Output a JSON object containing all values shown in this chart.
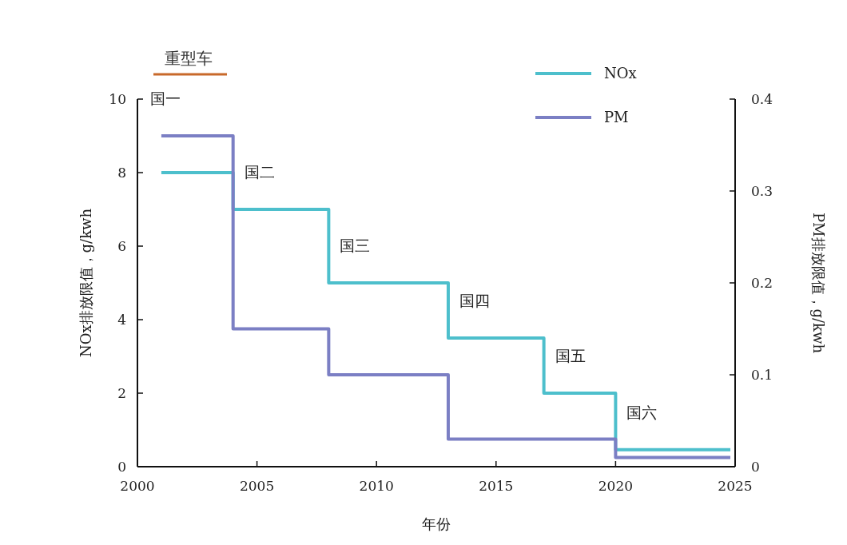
{
  "chart_data": {
    "type": "step",
    "title": "重型车",
    "xlabel": "年份",
    "ylabel": "NOx排放限值，g/kwh",
    "y2label": "PM排放限值，g/kwh",
    "x": [
      2001,
      2004,
      2008,
      2013,
      2017,
      2020,
      2024.8
    ],
    "series": [
      {
        "name": "NOx",
        "color": "#4dbfcc",
        "values": [
          8,
          7,
          5,
          3.5,
          2,
          0.46,
          0.46
        ]
      },
      {
        "name": "PM",
        "color": "#7b7fc4",
        "axis": "y2",
        "values": [
          0.36,
          0.15,
          0.1,
          0.03,
          0.03,
          0.01,
          0.01
        ]
      }
    ],
    "xlim": [
      2000,
      2025
    ],
    "xticks": [
      2000,
      2005,
      2010,
      2015,
      2020,
      2025
    ],
    "ylim": [
      0,
      10
    ],
    "yticks": [
      0,
      2,
      4,
      6,
      8,
      10
    ],
    "y2lim": [
      0,
      0.4
    ],
    "y2ticks": [
      0,
      0.1,
      0.2,
      0.3,
      0.4
    ],
    "annotations": [
      "国一",
      "国二",
      "国三",
      "国四",
      "国五",
      "国六"
    ],
    "legend": "top right",
    "grid": false
  }
}
